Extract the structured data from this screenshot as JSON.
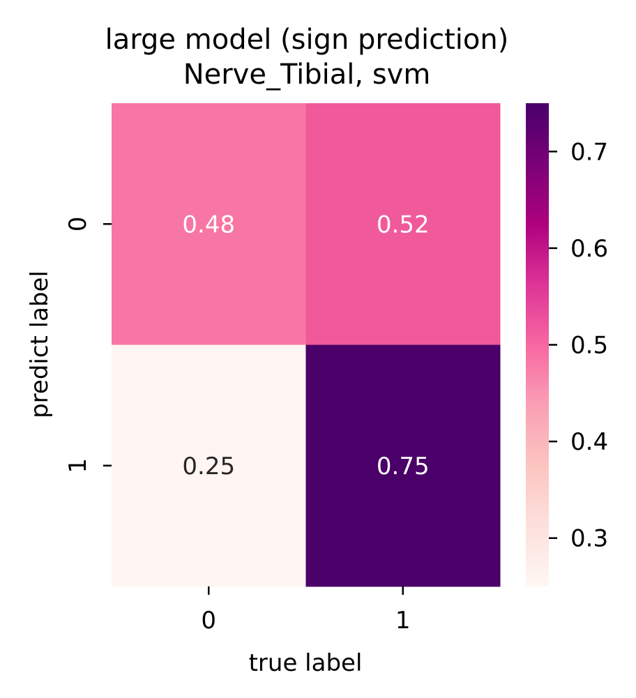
{
  "chart_data": {
    "type": "heatmap",
    "title": "large model (sign prediction)",
    "subtitle": "Nerve_Tibial, svm",
    "xlabel": "true label",
    "ylabel": "predict label",
    "x_categories": [
      "0",
      "1"
    ],
    "y_categories": [
      "0",
      "1"
    ],
    "values": [
      [
        0.48,
        0.52
      ],
      [
        0.25,
        0.75
      ]
    ],
    "value_labels": [
      [
        "0.48",
        "0.52"
      ],
      [
        "0.25",
        "0.75"
      ]
    ],
    "colorbar": {
      "colormap": "RdPu",
      "vmin": 0.25,
      "vmax": 0.75,
      "ticks": [
        0.3,
        0.4,
        0.5,
        0.6,
        0.7
      ],
      "tick_labels": [
        "0.3",
        "0.4",
        "0.5",
        "0.6",
        "0.7"
      ]
    },
    "cell_colors": [
      [
        "#f776a3",
        "#f05a9b"
      ],
      [
        "#fff5f2",
        "#4a0068"
      ]
    ],
    "annotation_colors": [
      [
        "#ffffff",
        "#ffffff"
      ],
      [
        "#262626",
        "#ffffff"
      ]
    ],
    "colormap_stops": [
      "#fff7f3",
      "#fde0dd",
      "#fcc5c0",
      "#fa9fb5",
      "#f768a1",
      "#dd3497",
      "#ae017e",
      "#7a0177",
      "#49006a"
    ]
  }
}
